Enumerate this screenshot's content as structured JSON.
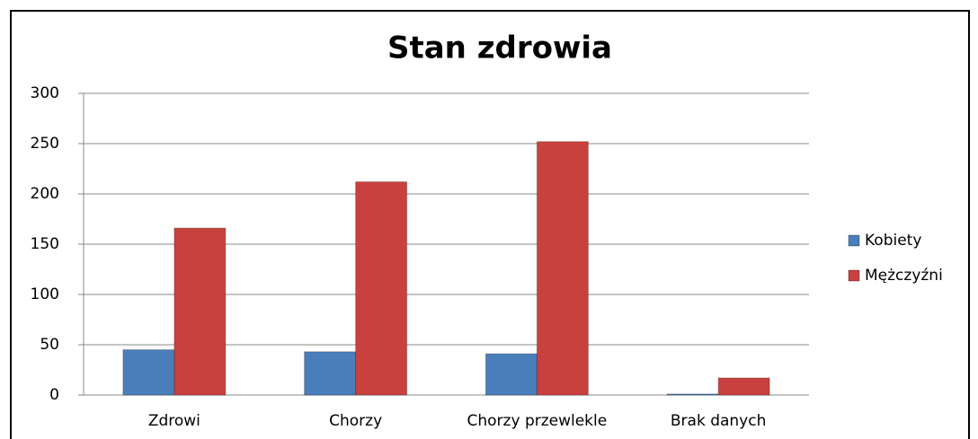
{
  "chart_data": {
    "type": "bar",
    "title": "Stan zdrowia",
    "categories": [
      "Zdrowi",
      "Chorzy",
      "Chorzy przewlekle",
      "Brak danych"
    ],
    "series": [
      {
        "name": "Kobiety",
        "color": "#4a7ebb",
        "values": [
          45,
          43,
          41,
          1
        ]
      },
      {
        "name": "Mężczyźni",
        "color": "#c9413e",
        "values": [
          166,
          212,
          252,
          17
        ]
      }
    ],
    "ylim": [
      0,
      300
    ],
    "yticks": [
      0,
      50,
      100,
      150,
      200,
      250,
      300
    ],
    "grid": true,
    "legend": "right"
  }
}
